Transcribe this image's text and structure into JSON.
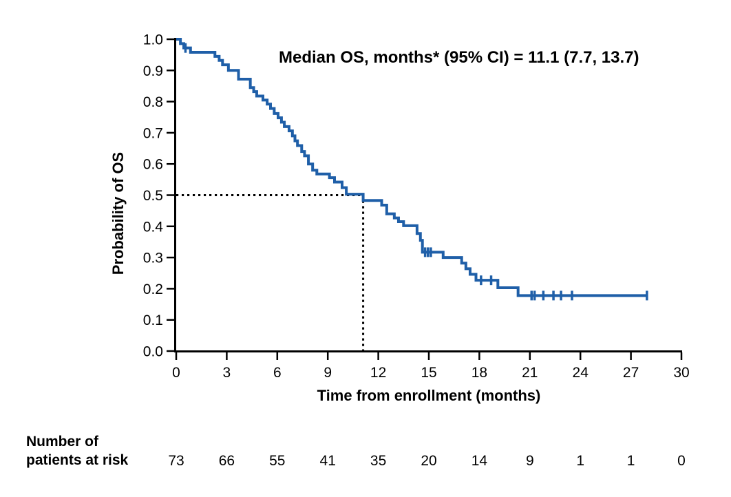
{
  "chart_data": {
    "type": "line",
    "variant": "kaplan_meier_step",
    "title": "Median OS, months* (95% CI) = 11.1 (7.7, 13.7)",
    "xlabel": "Time from enrollment (months)",
    "ylabel": "Probability of OS",
    "xlim": [
      0,
      30
    ],
    "ylim": [
      0.0,
      1.0
    ],
    "xticks": [
      0,
      3,
      6,
      9,
      12,
      15,
      18,
      21,
      24,
      27,
      30
    ],
    "ytick_labels": [
      "0.0",
      "0.1",
      "0.2",
      "0.3",
      "0.4",
      "0.5",
      "0.6",
      "0.7",
      "0.8",
      "0.9",
      "1.0"
    ],
    "grid": false,
    "legend": "none",
    "line_color": "#1F5FA8",
    "axis_color": "#000000",
    "median": {
      "time": 11.1,
      "prob": 0.5,
      "ci_lower": 7.7,
      "ci_upper": 13.7
    },
    "series": [
      {
        "name": "Overall survival",
        "steps": [
          [
            0.0,
            1.0
          ],
          [
            0.25,
            0.986
          ],
          [
            0.45,
            0.972
          ],
          [
            0.85,
            0.958
          ],
          [
            2.3,
            0.945
          ],
          [
            2.55,
            0.932
          ],
          [
            2.75,
            0.918
          ],
          [
            3.1,
            0.9
          ],
          [
            3.7,
            0.872
          ],
          [
            4.4,
            0.845
          ],
          [
            4.6,
            0.832
          ],
          [
            4.78,
            0.818
          ],
          [
            5.15,
            0.805
          ],
          [
            5.4,
            0.792
          ],
          [
            5.6,
            0.778
          ],
          [
            5.82,
            0.762
          ],
          [
            6.05,
            0.748
          ],
          [
            6.25,
            0.734
          ],
          [
            6.42,
            0.72
          ],
          [
            6.7,
            0.706
          ],
          [
            6.9,
            0.69
          ],
          [
            7.05,
            0.674
          ],
          [
            7.2,
            0.659
          ],
          [
            7.45,
            0.64
          ],
          [
            7.62,
            0.626
          ],
          [
            7.85,
            0.6
          ],
          [
            8.1,
            0.58
          ],
          [
            8.35,
            0.568
          ],
          [
            9.1,
            0.556
          ],
          [
            9.4,
            0.542
          ],
          [
            9.85,
            0.524
          ],
          [
            10.1,
            0.503
          ],
          [
            11.1,
            0.483
          ],
          [
            12.2,
            0.468
          ],
          [
            12.5,
            0.44
          ],
          [
            12.95,
            0.427
          ],
          [
            13.2,
            0.415
          ],
          [
            13.5,
            0.402
          ],
          [
            14.3,
            0.377
          ],
          [
            14.5,
            0.355
          ],
          [
            14.62,
            0.317
          ],
          [
            15.85,
            0.3
          ],
          [
            16.95,
            0.282
          ],
          [
            17.2,
            0.264
          ],
          [
            17.45,
            0.246
          ],
          [
            17.8,
            0.227
          ],
          [
            19.1,
            0.203
          ],
          [
            20.3,
            0.178
          ]
        ],
        "end_time": 27.95,
        "censor_marks": [
          [
            0.55,
            0.972
          ],
          [
            14.78,
            0.317
          ],
          [
            14.95,
            0.317
          ],
          [
            15.12,
            0.317
          ],
          [
            18.1,
            0.227
          ],
          [
            18.7,
            0.227
          ],
          [
            21.1,
            0.178
          ],
          [
            21.28,
            0.178
          ],
          [
            21.8,
            0.178
          ],
          [
            22.4,
            0.178
          ],
          [
            22.85,
            0.178
          ],
          [
            23.5,
            0.178
          ],
          [
            27.95,
            0.178
          ]
        ]
      }
    ],
    "at_risk": {
      "label": [
        "Number of",
        "patients at risk"
      ],
      "times": [
        0,
        3,
        6,
        9,
        12,
        15,
        18,
        21,
        24,
        27,
        30
      ],
      "values": [
        "73",
        "66",
        "55",
        "41",
        "35",
        "20",
        "14",
        "9",
        "1",
        "1",
        "0"
      ]
    }
  }
}
